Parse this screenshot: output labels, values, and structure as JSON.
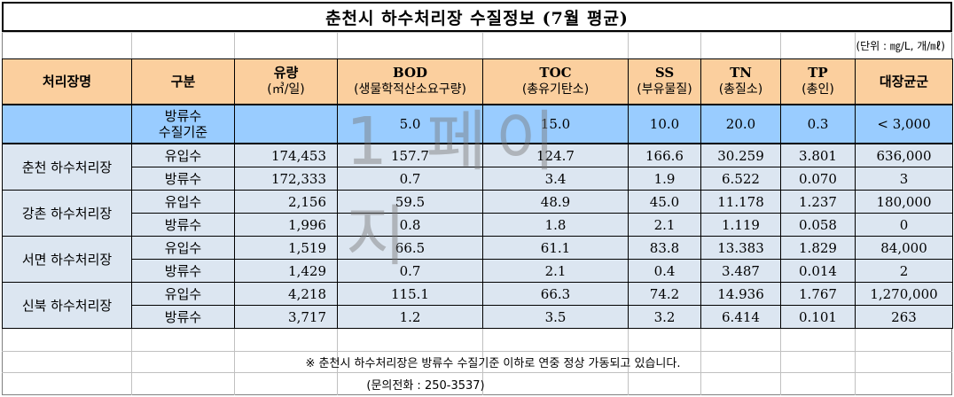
{
  "title": "춘천시 하수처리장 수질정보 (7월 평균)",
  "unit_note": "(단위 : ㎎/L, 개/㎖)",
  "headers": [
    {
      "main": "처리장명",
      "sub": ""
    },
    {
      "main": "구분",
      "sub": ""
    },
    {
      "main": "유량",
      "sub": "(㎥/일)"
    },
    {
      "main": "BOD",
      "sub": "(생물학적산소요구량)"
    },
    {
      "main": "TOC",
      "sub": "(총유기탄소)"
    },
    {
      "main": "SS",
      "sub": "(부유물질)"
    },
    {
      "main": "TN",
      "sub": "(총질소)"
    },
    {
      "main": "TP",
      "sub": "(총인)"
    },
    {
      "main": "대장균군",
      "sub": ""
    }
  ],
  "standard": {
    "label_line1": "방류수",
    "label_line2": "수질기준",
    "flow": "",
    "bod": "5.0",
    "toc": "15.0",
    "ss": "10.0",
    "tn": "20.0",
    "tp": "0.3",
    "coliform": "< 3,000"
  },
  "plants": [
    {
      "name": "춘천 하수처리장",
      "rows": [
        {
          "kind": "유입수",
          "flow": "174,453",
          "bod": "157.7",
          "toc": "124.7",
          "ss": "166.6",
          "tn": "30.259",
          "tp": "3.801",
          "coliform": "636,000"
        },
        {
          "kind": "방류수",
          "flow": "172,333",
          "bod": "0.7",
          "toc": "3.4",
          "ss": "1.9",
          "tn": "6.522",
          "tp": "0.070",
          "coliform": "3"
        }
      ]
    },
    {
      "name": "강촌 하수처리장",
      "rows": [
        {
          "kind": "유입수",
          "flow": "2,156",
          "bod": "59.5",
          "toc": "48.9",
          "ss": "45.0",
          "tn": "11.178",
          "tp": "1.237",
          "coliform": "180,000"
        },
        {
          "kind": "방류수",
          "flow": "1,996",
          "bod": "0.8",
          "toc": "1.8",
          "ss": "2.1",
          "tn": "1.119",
          "tp": "0.058",
          "coliform": "0"
        }
      ]
    },
    {
      "name": "서면 하수처리장",
      "rows": [
        {
          "kind": "유입수",
          "flow": "1,519",
          "bod": "66.5",
          "toc": "61.1",
          "ss": "83.8",
          "tn": "13.383",
          "tp": "1.829",
          "coliform": "84,000"
        },
        {
          "kind": "방류수",
          "flow": "1,429",
          "bod": "0.7",
          "toc": "2.1",
          "ss": "0.4",
          "tn": "3.487",
          "tp": "0.014",
          "coliform": "2"
        }
      ]
    },
    {
      "name": "신북 하수처리장",
      "rows": [
        {
          "kind": "유입수",
          "flow": "4,218",
          "bod": "115.1",
          "toc": "66.3",
          "ss": "74.2",
          "tn": "14.936",
          "tp": "1.767",
          "coliform": "1,270,000"
        },
        {
          "kind": "방류수",
          "flow": "3,717",
          "bod": "1.2",
          "toc": "3.5",
          "ss": "3.2",
          "tn": "6.414",
          "tp": "0.101",
          "coliform": "263"
        }
      ]
    }
  ],
  "watermark": "1 페이지",
  "footnote": "※ 춘천시 하수처리장은 방류수 수질기준 이하로 연중 정상 가동되고 있습니다.",
  "contact": "(문의전화 : 250-3537)",
  "colors": {
    "header_bg": "#fbcf9e",
    "standard_bg": "#99ccff",
    "row_bg": "#dce6f1"
  }
}
